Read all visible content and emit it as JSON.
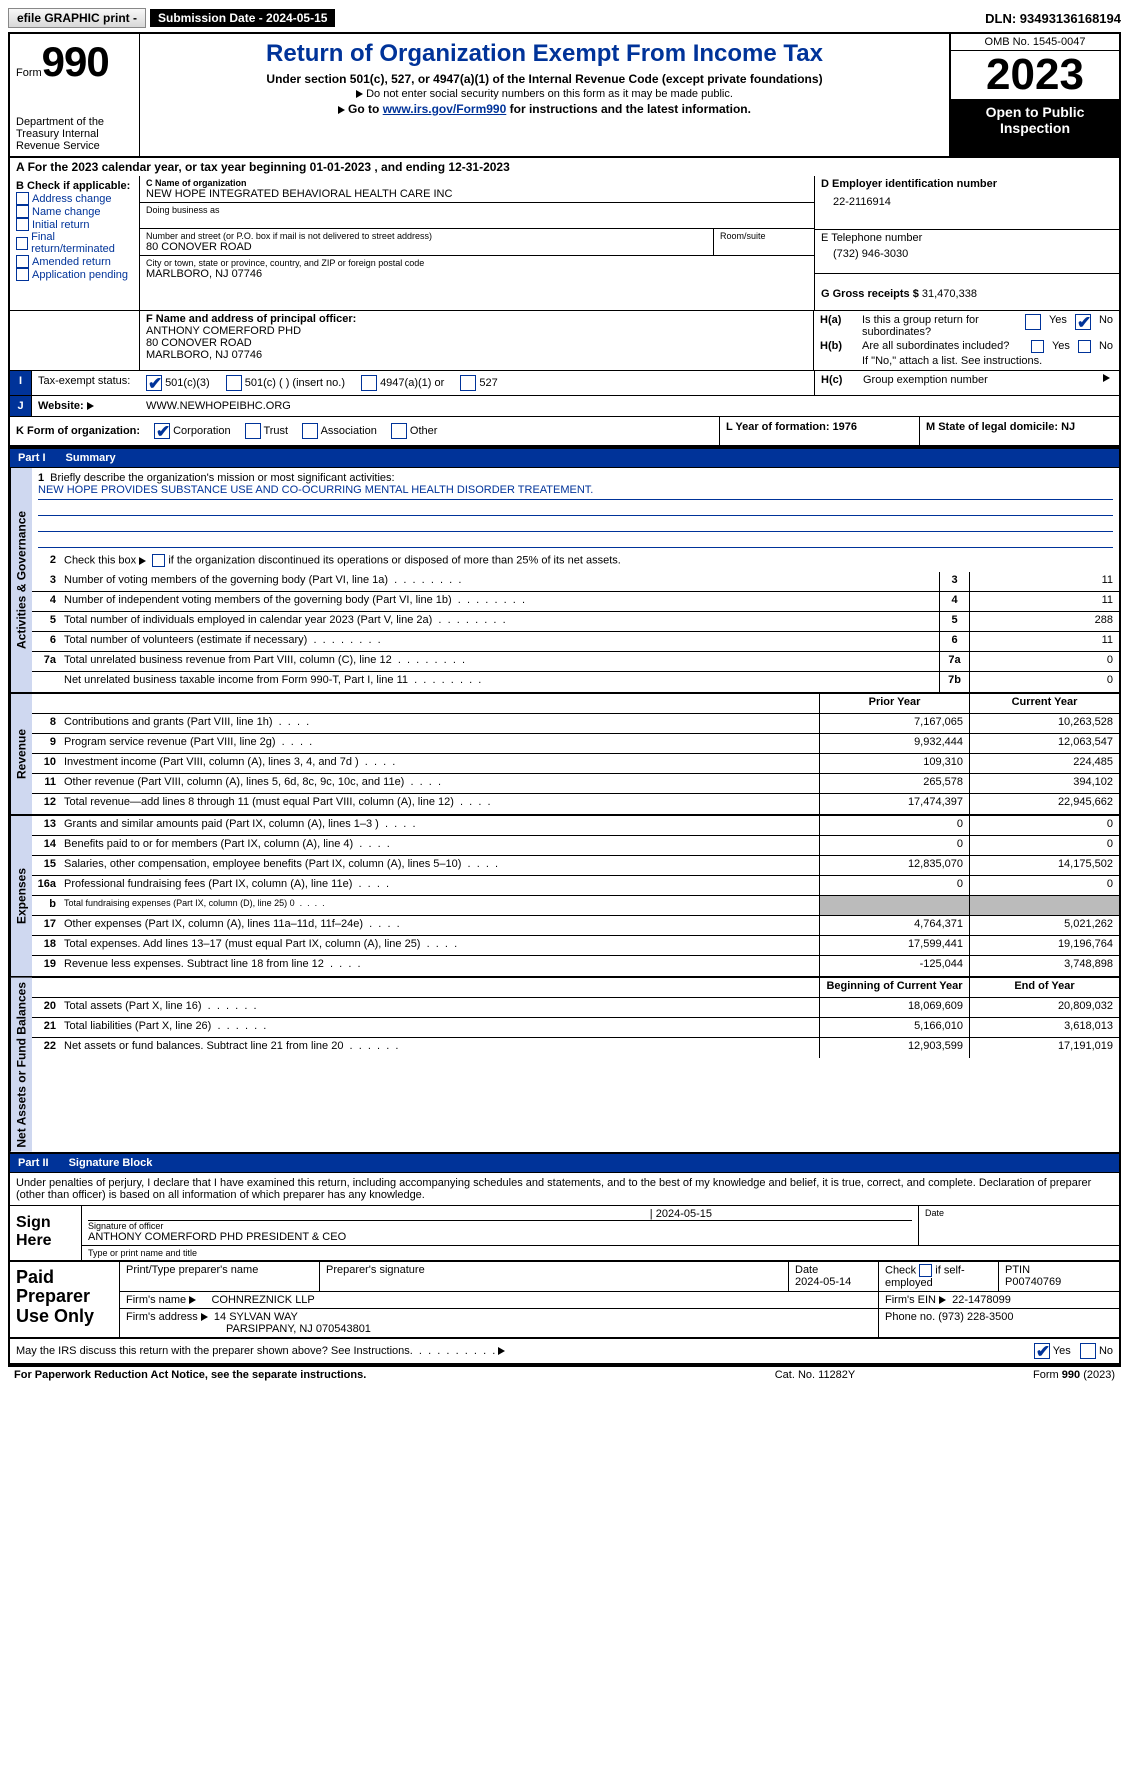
{
  "topbar": {
    "efile": "efile GRAPHIC print -",
    "submission": "Submission Date - 2024-05-15",
    "dln": "DLN: 93493136168194"
  },
  "header": {
    "form_word": "Form",
    "form_number": "990",
    "dept": "Department of the Treasury Internal Revenue Service",
    "title": "Return of Organization Exempt From Income Tax",
    "sub": "Under section 501(c), 527, or 4947(a)(1) of the Internal Revenue Code (except private foundations)",
    "sub2_prefix": "Do not enter social security numbers on this form as it may be made public.",
    "goto_prefix": "Go to ",
    "goto_link": "www.irs.gov/Form990",
    "goto_suffix": " for instructions and the latest information.",
    "omb": "OMB No. 1545-0047",
    "year": "2023",
    "openpub": "Open to Public Inspection"
  },
  "period": "For the 2023 calendar year, or tax year beginning 01-01-2023   , and ending 12-31-2023",
  "sectionB": {
    "hdr": "B Check if applicable:",
    "opts": [
      "Address change",
      "Name change",
      "Initial return",
      "Final return/terminated",
      "Amended return",
      "Application pending"
    ]
  },
  "sectionC": {
    "name_lbl": "C Name of organization",
    "name_val": "NEW HOPE INTEGRATED BEHAVIORAL HEALTH CARE INC",
    "dba_lbl": "Doing business as",
    "street_lbl": "Number and street (or P.O. box if mail is not delivered to street address)",
    "street_val": "80 CONOVER ROAD",
    "room_lbl": "Room/suite",
    "city_lbl": "City or town, state or province, country, and ZIP or foreign postal code",
    "city_val": "MARLBORO, NJ  07746"
  },
  "sectionD": {
    "ein_lbl": "D Employer identification number",
    "ein_val": "22-2116914",
    "phone_lbl": "E Telephone number",
    "phone_val": "(732) 946-3030",
    "gross_lbl": "G Gross receipts $",
    "gross_val": "31,470,338"
  },
  "sectionF": {
    "lbl": "F Name and address of principal officer:",
    "name": "ANTHONY COMERFORD PHD",
    "street": "80 CONOVER ROAD",
    "city": "MARLBORO, NJ  07746"
  },
  "sectionH": {
    "ha": "Is this a group return for subordinates?",
    "hb": "Are all subordinates included?",
    "hb_note": "If \"No,\" attach a list. See instructions.",
    "hc": "Group exemption number",
    "yes": "Yes",
    "no": "No"
  },
  "status": {
    "lbl": "Tax-exempt status:",
    "o1": "501(c)(3)",
    "o2": "501(c) (  ) (insert no.)",
    "o3": "4947(a)(1) or",
    "o4": "527"
  },
  "website": {
    "lbl": "Website:",
    "val": "WWW.NEWHOPEIBHC.ORG"
  },
  "sectionK": {
    "lbl": "K Form of organization:",
    "o1": "Corporation",
    "o2": "Trust",
    "o3": "Association",
    "o4": "Other"
  },
  "sectionL": "L Year of formation: 1976",
  "sectionM": "M State of legal domicile: NJ",
  "part1": {
    "num": "Part I",
    "title": "Summary"
  },
  "mission": {
    "lbl1": "1",
    "lbl_txt": "Briefly describe the organization's mission or most significant activities:",
    "val": "NEW HOPE PROVIDES SUBSTANCE USE AND CO-OCURRING MENTAL HEALTH DISORDER TREATEMENT."
  },
  "side_labels": {
    "gov": "Activities & Governance",
    "rev": "Revenue",
    "exp": "Expenses",
    "net": "Net Assets or Fund Balances"
  },
  "gov_lines": {
    "l2": "Check this box        if the organization discontinued its operations or disposed of more than 25% of its net assets.",
    "l3": {
      "n": "3",
      "d": "Number of voting members of the governing body (Part VI, line 1a)",
      "bn": "3",
      "v": "11"
    },
    "l4": {
      "n": "4",
      "d": "Number of independent voting members of the governing body (Part VI, line 1b)",
      "bn": "4",
      "v": "11"
    },
    "l5": {
      "n": "5",
      "d": "Total number of individuals employed in calendar year 2023 (Part V, line 2a)",
      "bn": "5",
      "v": "288"
    },
    "l6": {
      "n": "6",
      "d": "Total number of volunteers (estimate if necessary)",
      "bn": "6",
      "v": "11"
    },
    "l7a": {
      "n": "7a",
      "d": "Total unrelated business revenue from Part VIII, column (C), line 12",
      "bn": "7a",
      "v": "0"
    },
    "l7b": {
      "n": "",
      "d": "Net unrelated business taxable income from Form 990-T, Part I, line 11",
      "bn": "7b",
      "v": "0"
    }
  },
  "col_hdrs": {
    "prior": "Prior Year",
    "current": "Current Year",
    "bcy": "Beginning of Current Year",
    "eoy": "End of Year"
  },
  "rev_lines": [
    {
      "n": "8",
      "d": "Contributions and grants (Part VIII, line 1h)",
      "p": "7,167,065",
      "c": "10,263,528"
    },
    {
      "n": "9",
      "d": "Program service revenue (Part VIII, line 2g)",
      "p": "9,932,444",
      "c": "12,063,547"
    },
    {
      "n": "10",
      "d": "Investment income (Part VIII, column (A), lines 3, 4, and 7d )",
      "p": "109,310",
      "c": "224,485"
    },
    {
      "n": "11",
      "d": "Other revenue (Part VIII, column (A), lines 5, 6d, 8c, 9c, 10c, and 11e)",
      "p": "265,578",
      "c": "394,102"
    },
    {
      "n": "12",
      "d": "Total revenue—add lines 8 through 11 (must equal Part VIII, column (A), line 12)",
      "p": "17,474,397",
      "c": "22,945,662"
    }
  ],
  "exp_lines": [
    {
      "n": "13",
      "d": "Grants and similar amounts paid (Part IX, column (A), lines 1–3 )",
      "p": "0",
      "c": "0"
    },
    {
      "n": "14",
      "d": "Benefits paid to or for members (Part IX, column (A), line 4)",
      "p": "0",
      "c": "0"
    },
    {
      "n": "15",
      "d": "Salaries, other compensation, employee benefits (Part IX, column (A), lines 5–10)",
      "p": "12,835,070",
      "c": "14,175,502"
    },
    {
      "n": "16a",
      "d": "Professional fundraising fees (Part IX, column (A), line 11e)",
      "p": "0",
      "c": "0"
    },
    {
      "n": "b",
      "d": "Total fundraising expenses (Part IX, column (D), line 25) 0",
      "p": "",
      "c": "",
      "grey": true,
      "small": true
    },
    {
      "n": "17",
      "d": "Other expenses (Part IX, column (A), lines 11a–11d, 11f–24e)",
      "p": "4,764,371",
      "c": "5,021,262"
    },
    {
      "n": "18",
      "d": "Total expenses. Add lines 13–17 (must equal Part IX, column (A), line 25)",
      "p": "17,599,441",
      "c": "19,196,764"
    },
    {
      "n": "19",
      "d": "Revenue less expenses. Subtract line 18 from line 12",
      "p": "-125,044",
      "c": "3,748,898"
    }
  ],
  "net_lines": [
    {
      "n": "20",
      "d": "Total assets (Part X, line 16)",
      "p": "18,069,609",
      "c": "20,809,032"
    },
    {
      "n": "21",
      "d": "Total liabilities (Part X, line 26)",
      "p": "5,166,010",
      "c": "3,618,013"
    },
    {
      "n": "22",
      "d": "Net assets or fund balances. Subtract line 21 from line 20",
      "p": "12,903,599",
      "c": "17,191,019"
    }
  ],
  "part2": {
    "num": "Part II",
    "title": "Signature Block"
  },
  "sig_text": "Under penalties of perjury, I declare that I have examined this return, including accompanying schedules and statements, and to the best of my knowledge and belief, it is true, correct, and complete. Declaration of preparer (other than officer) is based on all information of which preparer has any knowledge.",
  "sign": {
    "lbl": "Sign Here",
    "sig_lbl": "Signature of officer",
    "sig_val": "ANTHONY COMERFORD PHD  PRESIDENT & CEO",
    "date_lbl": "Date",
    "date_val": "2024-05-15",
    "type_lbl": "Type or print name and title"
  },
  "prep": {
    "lbl": "Paid Preparer Use Only",
    "name_lbl": "Print/Type preparer's name",
    "psig_lbl": "Preparer's signature",
    "date_lbl": "Date",
    "date_val": "2024-05-14",
    "check_lbl": "Check        if self-employed",
    "ptin_lbl": "PTIN",
    "ptin_val": "P00740769",
    "firm_name_lbl": "Firm's name",
    "firm_name_val": "COHNREZNICK LLP",
    "firm_ein_lbl": "Firm's EIN",
    "firm_ein_val": "22-1478099",
    "firm_addr_lbl": "Firm's address",
    "firm_addr_val1": "14 SYLVAN WAY",
    "firm_addr_val2": "PARSIPPANY, NJ  070543801",
    "phone_lbl": "Phone no.",
    "phone_val": "(973) 228-3500"
  },
  "discuss": {
    "q": "May the IRS discuss this return with the preparer shown above? See Instructions.",
    "yes": "Yes",
    "no": "No"
  },
  "footer": {
    "l": "For Paperwork Reduction Act Notice, see the separate instructions.",
    "m": "Cat. No. 11282Y",
    "r_prefix": "Form ",
    "r_bold": "990",
    "r_suffix": " (2023)"
  }
}
